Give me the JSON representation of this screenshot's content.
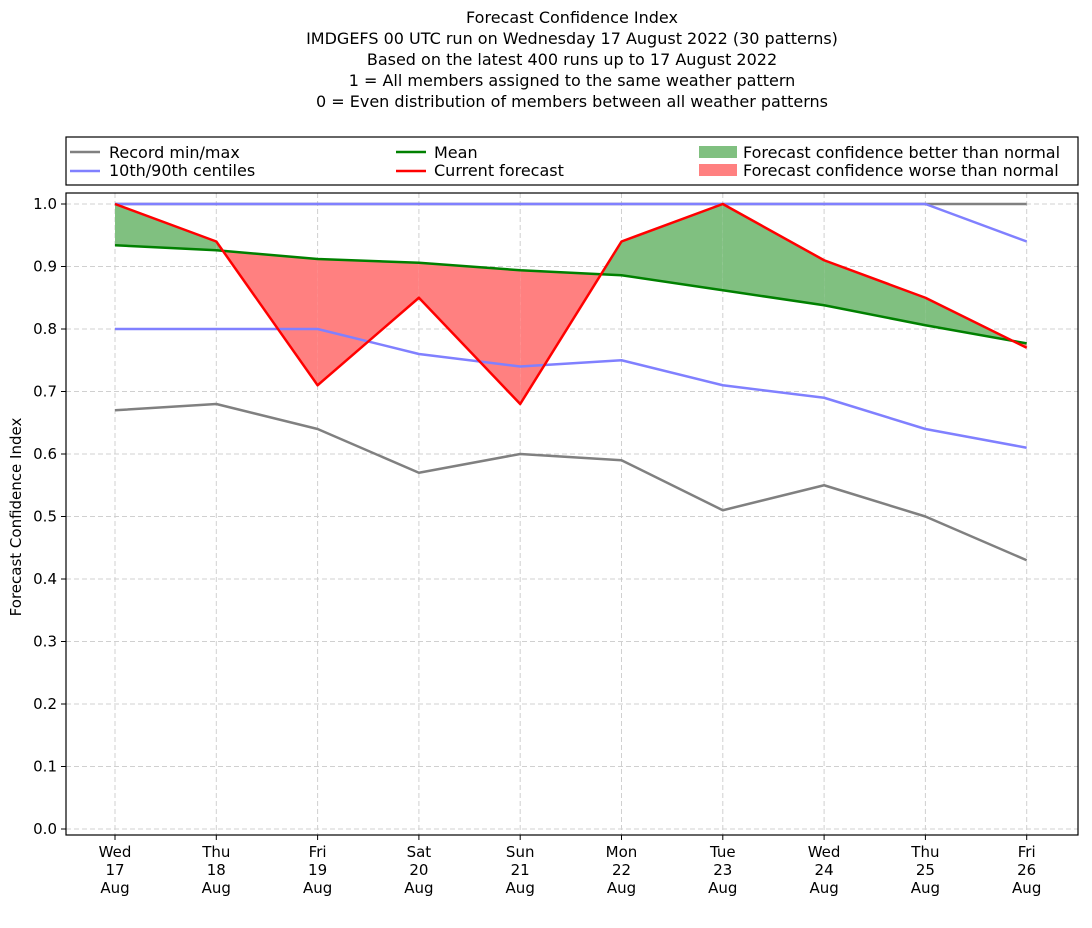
{
  "chart_data": {
    "type": "line",
    "title_lines": [
      "Forecast Confidence Index",
      "IMDGEFS 00 UTC run on Wednesday 17 August 2022 (30 patterns)",
      "Based on the latest 400 runs up to 17 August 2022",
      "1 = All members assigned to the same weather pattern",
      "0 = Even distribution of members between all weather patterns"
    ],
    "ylabel": "Forecast Confidence Index",
    "xlabel": "",
    "ylim": [
      0.0,
      1.0
    ],
    "yticks": [
      "0.0",
      "0.1",
      "0.2",
      "0.3",
      "0.4",
      "0.5",
      "0.6",
      "0.7",
      "0.8",
      "0.9",
      "1.0"
    ],
    "grid": true,
    "categories": [
      [
        "Wed",
        "17",
        "Aug"
      ],
      [
        "Thu",
        "18",
        "Aug"
      ],
      [
        "Fri",
        "19",
        "Aug"
      ],
      [
        "Sat",
        "20",
        "Aug"
      ],
      [
        "Sun",
        "21",
        "Aug"
      ],
      [
        "Mon",
        "22",
        "Aug"
      ],
      [
        "Tue",
        "23",
        "Aug"
      ],
      [
        "Wed",
        "24",
        "Aug"
      ],
      [
        "Thu",
        "25",
        "Aug"
      ],
      [
        "Fri",
        "26",
        "Aug"
      ]
    ],
    "series": [
      {
        "key": "record_max",
        "values": [
          1.0,
          1.0,
          1.0,
          1.0,
          1.0,
          1.0,
          1.0,
          1.0,
          1.0,
          1.0
        ],
        "color": "#808080"
      },
      {
        "key": "record_min",
        "values": [
          0.67,
          0.68,
          0.64,
          0.57,
          0.6,
          0.59,
          0.51,
          0.55,
          0.5,
          0.43
        ],
        "color": "#808080"
      },
      {
        "key": "p90",
        "values": [
          1.0,
          1.0,
          1.0,
          1.0,
          1.0,
          1.0,
          1.0,
          1.0,
          1.0,
          0.94
        ],
        "color": "#8080ff"
      },
      {
        "key": "p10",
        "values": [
          0.8,
          0.8,
          0.8,
          0.76,
          0.74,
          0.75,
          0.71,
          0.69,
          0.64,
          0.61
        ],
        "color": "#8080ff"
      },
      {
        "key": "mean",
        "values": [
          0.934,
          0.926,
          0.912,
          0.906,
          0.894,
          0.886,
          0.862,
          0.838,
          0.806,
          0.777
        ],
        "color": "#008000"
      },
      {
        "key": "current",
        "values": [
          1.0,
          0.94,
          0.71,
          0.85,
          0.68,
          0.94,
          1.0,
          0.91,
          0.85,
          0.77
        ],
        "color": "#ff0000"
      }
    ],
    "fill_colors": {
      "better": "#80c080",
      "worse": "#ff8080"
    },
    "legend": {
      "placement": "top",
      "entries": [
        {
          "label": "Record min/max",
          "kind": "line",
          "color": "#808080"
        },
        {
          "label": "10th/90th centiles",
          "kind": "line",
          "color": "#8080ff"
        },
        {
          "label": "Mean",
          "kind": "line",
          "color": "#008000"
        },
        {
          "label": "Current forecast",
          "kind": "line",
          "color": "#ff0000"
        },
        {
          "label": "Forecast confidence better than normal",
          "kind": "patch",
          "color": "#80c080"
        },
        {
          "label": "Forecast confidence worse than normal",
          "kind": "patch",
          "color": "#ff8080"
        }
      ]
    }
  }
}
